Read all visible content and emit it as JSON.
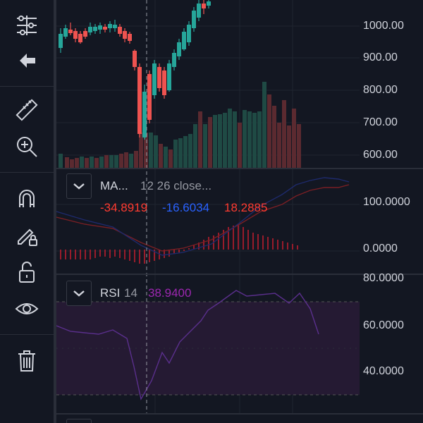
{
  "toolbar": {
    "icons": [
      "chart-settings-icon",
      "back-arrow-icon",
      "ruler-icon",
      "zoom-in-icon",
      "magnet-icon",
      "pencil-lock-icon",
      "unlock-icon",
      "eye-icon",
      "trash-icon"
    ]
  },
  "price_pane": {
    "axis_labels": [
      "1000.00",
      "900.00",
      "800.00",
      "700.00",
      "600.00"
    ]
  },
  "macd_pane": {
    "title": "MA...",
    "params": "12 26 close...",
    "values": [
      "-34.8919",
      "-16.6034",
      "18.2885"
    ],
    "axis_labels": [
      "100.0000",
      "0.0000"
    ]
  },
  "rsi_pane": {
    "title": "RSI",
    "period": "14",
    "value": "38.9400",
    "axis_labels": [
      "80.0000",
      "60.0000",
      "40.0000"
    ]
  },
  "colors": {
    "background": "#131722",
    "up": "#26a69a",
    "down": "#ef5350",
    "macd_line": "#2962ff",
    "signal_line": "#ff3b30",
    "rsi": "#7e57c2"
  }
}
